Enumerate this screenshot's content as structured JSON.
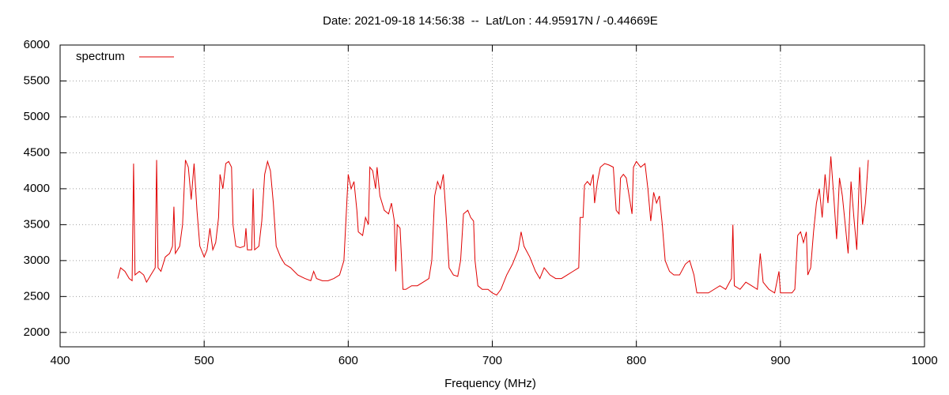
{
  "chart_data": {
    "type": "line",
    "title": "Date: 2021-09-18 14:56:38  --  Lat/Lon : 44.95917N / -0.44669E",
    "x_label": "Frequency (MHz)",
    "x": [
      440,
      442,
      445,
      448,
      450,
      451,
      452,
      455,
      458,
      460,
      463,
      466,
      467,
      468,
      470,
      473,
      476,
      478,
      479,
      480,
      483,
      485,
      487,
      489,
      491,
      493,
      495,
      497,
      500,
      502,
      504,
      506,
      508,
      510,
      511,
      513,
      515,
      517,
      519,
      520,
      522,
      525,
      528,
      529,
      530,
      533,
      534,
      535,
      538,
      540,
      542,
      544,
      546,
      548,
      550,
      553,
      556,
      560,
      565,
      570,
      574,
      576,
      578,
      582,
      586,
      590,
      594,
      597,
      599,
      600,
      602,
      604,
      606,
      607,
      610,
      612,
      614,
      615,
      617,
      619,
      620,
      622,
      625,
      628,
      630,
      632,
      633,
      634,
      636,
      638,
      640,
      644,
      648,
      652,
      656,
      658,
      660,
      662,
      664,
      666,
      668,
      670,
      673,
      676,
      678,
      680,
      683,
      685,
      687,
      688,
      690,
      693,
      697,
      700,
      703,
      706,
      710,
      714,
      718,
      720,
      722,
      726,
      730,
      733,
      736,
      740,
      744,
      748,
      752,
      756,
      760,
      761,
      763,
      764,
      766,
      768,
      770,
      771,
      773,
      775,
      778,
      781,
      784,
      786,
      788,
      789,
      791,
      793,
      795,
      797,
      798,
      800,
      803,
      806,
      808,
      810,
      812,
      814,
      816,
      818,
      820,
      823,
      826,
      830,
      834,
      837,
      840,
      842,
      846,
      850,
      854,
      858,
      862,
      866,
      867,
      868,
      872,
      876,
      880,
      884,
      886,
      888,
      892,
      896,
      899,
      900,
      904,
      908,
      910,
      912,
      914,
      916,
      918,
      919,
      921,
      923,
      925,
      927,
      929,
      931,
      933,
      935,
      937,
      939,
      941,
      943,
      945,
      947,
      949,
      951,
      953,
      955,
      957,
      959,
      961
    ],
    "series": [
      {
        "name": "spectrum",
        "color": "#e00000",
        "values": [
          2750,
          2900,
          2850,
          2750,
          2720,
          4350,
          2800,
          2850,
          2800,
          2700,
          2800,
          2900,
          4400,
          2900,
          2850,
          3050,
          3100,
          3200,
          3750,
          3100,
          3200,
          3500,
          4400,
          4300,
          3850,
          4350,
          3700,
          3200,
          3050,
          3150,
          3450,
          3150,
          3250,
          3600,
          4200,
          4000,
          4350,
          4380,
          4300,
          3500,
          3200,
          3180,
          3200,
          3450,
          3150,
          3150,
          4000,
          3150,
          3200,
          3550,
          4200,
          4380,
          4250,
          3800,
          3200,
          3050,
          2950,
          2900,
          2800,
          2750,
          2720,
          2850,
          2750,
          2720,
          2720,
          2750,
          2800,
          3000,
          3800,
          4200,
          4000,
          4100,
          3700,
          3400,
          3350,
          3600,
          3500,
          4300,
          4250,
          4000,
          4300,
          3900,
          3700,
          3650,
          3800,
          3550,
          2850,
          3500,
          3450,
          2600,
          2600,
          2650,
          2650,
          2700,
          2750,
          3000,
          3900,
          4100,
          4000,
          4200,
          3600,
          2900,
          2800,
          2780,
          3000,
          3650,
          3700,
          3600,
          3550,
          3000,
          2650,
          2600,
          2600,
          2550,
          2520,
          2600,
          2800,
          2950,
          3150,
          3400,
          3200,
          3050,
          2850,
          2750,
          2900,
          2800,
          2750,
          2750,
          2800,
          2850,
          2900,
          3600,
          3600,
          4050,
          4100,
          4050,
          4200,
          3800,
          4100,
          4300,
          4350,
          4330,
          4300,
          3700,
          3650,
          4150,
          4200,
          4150,
          3900,
          3650,
          4300,
          4380,
          4300,
          4350,
          4000,
          3550,
          3950,
          3800,
          3900,
          3500,
          3000,
          2850,
          2800,
          2800,
          2950,
          3000,
          2800,
          2550,
          2550,
          2550,
          2600,
          2650,
          2600,
          2750,
          3500,
          2650,
          2600,
          2700,
          2650,
          2600,
          3100,
          2700,
          2600,
          2550,
          2850,
          2550,
          2550,
          2550,
          2600,
          3350,
          3400,
          3250,
          3400,
          2800,
          2900,
          3400,
          3800,
          4000,
          3600,
          4200,
          3800,
          4450,
          3900,
          3300,
          4150,
          3900,
          3500,
          3100,
          4100,
          3600,
          3150,
          4300,
          3500,
          3800,
          4400
        ]
      }
    ],
    "xlim": [
      400,
      1000
    ],
    "xticks": [
      400,
      500,
      600,
      700,
      800,
      900,
      1000
    ],
    "ylim": [
      1800,
      6000
    ],
    "yticks": [
      2000,
      2500,
      3000,
      3500,
      4000,
      4500,
      5000,
      5500,
      6000
    ],
    "grid": true,
    "legend": "top-left"
  }
}
